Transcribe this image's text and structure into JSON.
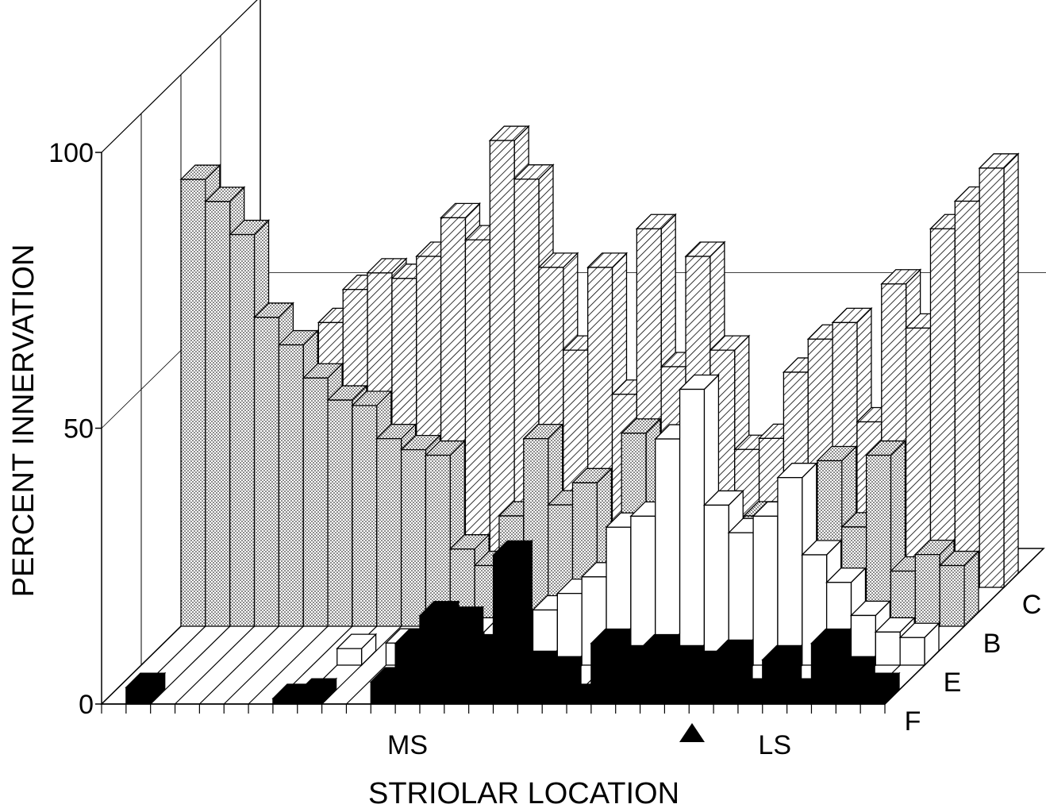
{
  "chart_data": {
    "type": "bar3d",
    "x_label": "STRIOLAR LOCATION",
    "y_label": "PERCENT INNERVATION",
    "categories": [
      null,
      null,
      null,
      null,
      null,
      null,
      null,
      null,
      null,
      null,
      null,
      null,
      "MS",
      null,
      null,
      null,
      null,
      null,
      null,
      null,
      null,
      null,
      null,
      null,
      null,
      null,
      null,
      "LS",
      null,
      null,
      null,
      null
    ],
    "ylim": [
      0,
      100
    ],
    "yticks": [
      0,
      50,
      100
    ],
    "series": [
      {
        "name": "C",
        "color": "#000000",
        "pattern": "hatch",
        "values": [
          null,
          null,
          null,
          43,
          48,
          54,
          57,
          56,
          60,
          67,
          63,
          81,
          74,
          58,
          43,
          58,
          35,
          65,
          40,
          60,
          43,
          25,
          27,
          39,
          45,
          48,
          30,
          55,
          47,
          65,
          70,
          76
        ]
      },
      {
        "name": "B",
        "color": "#000000",
        "pattern": "dots",
        "values": [
          81,
          77,
          71,
          56,
          51,
          45,
          41,
          40,
          34,
          32,
          31,
          14,
          11,
          20,
          34,
          22,
          26,
          null,
          35,
          null,
          null,
          null,
          null,
          20,
          null,
          null,
          30,
          18,
          31,
          10,
          13,
          11
        ]
      },
      {
        "name": "E",
        "color": "#ffffff",
        "pattern": "none",
        "values": [
          0,
          0,
          0,
          0,
          0,
          0,
          0,
          0,
          3,
          0,
          4,
          0,
          0,
          6,
          0,
          0,
          10,
          13,
          16,
          25,
          27,
          41,
          50,
          29,
          24,
          27,
          34,
          20,
          15,
          9,
          6,
          5
        ]
      },
      {
        "name": "F",
        "color": "#000000",
        "pattern": "solid",
        "values": [
          0,
          3,
          0,
          0,
          0,
          0,
          0,
          1,
          2,
          0,
          0,
          4,
          11,
          16,
          15,
          10,
          27,
          7,
          6,
          1,
          11,
          8,
          10,
          8,
          7,
          9,
          2,
          8,
          2,
          11,
          6,
          3
        ]
      }
    ]
  }
}
